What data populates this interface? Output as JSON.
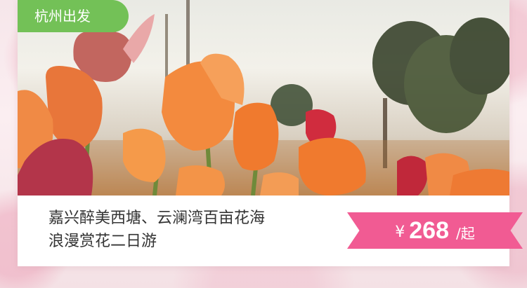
{
  "badge": {
    "label": "杭州出发"
  },
  "product": {
    "title_line1": "嘉兴醉美西塘、云澜湾百亩花海",
    "title_line2": "浪漫赏花二日游"
  },
  "price": {
    "currency": "¥",
    "amount": "268",
    "unit": "/起"
  },
  "colors": {
    "badge": "#73c157",
    "ribbon": "#f15b93",
    "title_text": "#333333"
  }
}
